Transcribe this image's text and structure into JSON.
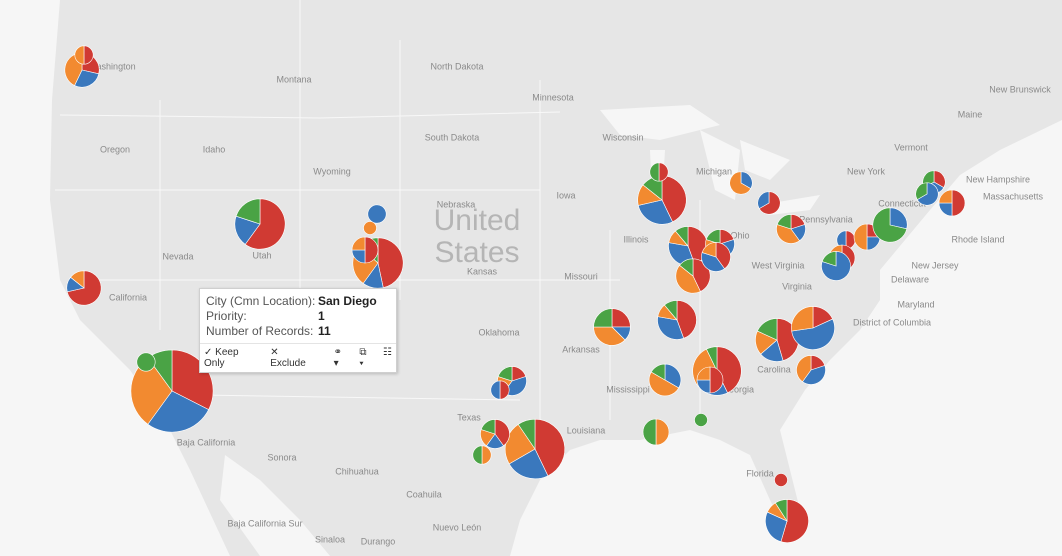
{
  "map": {
    "colors": [
      "#d03a33",
      "#3a78bd",
      "#f28a30",
      "#4aa345"
    ],
    "labels": [
      "Washington",
      "North Dakota",
      "Montana",
      "Minnesota",
      "Oregon",
      "Idaho",
      "South Dakota",
      "Wisconsin",
      "Michigan",
      "Wyoming",
      "Vermont",
      "Maine",
      "New Brunswick",
      "New Hampshire",
      "Massachusetts",
      "New York",
      "Connecticut",
      "Nevada",
      "Utah",
      "Nebraska",
      "Iowa",
      "Illinois",
      "Ohio",
      "Pennsylvania",
      "Rhode Island",
      "New Jersey",
      "California",
      "Kansas",
      "Missouri",
      "West Virginia",
      "Virginia",
      "Delaware",
      "Maryland",
      "District of Columbia",
      "Oklahoma",
      "Arkansas",
      "Carolina",
      "Mississippi",
      "Georgia",
      "Texas",
      "Louisiana",
      "Florida",
      "Baja California",
      "Sonora",
      "Chihuahua",
      "Coahuila",
      "Baja California Sur",
      "Sinaloa",
      "Durango",
      "Nuevo León"
    ],
    "country": "United States",
    "pies": [
      [
        13,
        11,
        12,
        4
      ],
      [
        2,
        2,
        3,
        0
      ],
      [
        1,
        0,
        1,
        0
      ],
      [
        9,
        3,
        0,
        3
      ],
      [
        7,
        2,
        4,
        2
      ],
      [
        0,
        2,
        0,
        0
      ],
      [
        0,
        0,
        1,
        0
      ],
      [
        2,
        1,
        1,
        0
      ],
      [
        5,
        1,
        1,
        0
      ],
      [
        0,
        0,
        0,
        2
      ],
      [
        1,
        2,
        1,
        1
      ],
      [
        1,
        1,
        0,
        0
      ],
      [
        9,
        5,
        5,
        2
      ],
      [
        2,
        1,
        1,
        1
      ],
      [
        0,
        0,
        1,
        1
      ],
      [
        0,
        0,
        2,
        2
      ],
      [
        2,
        1,
        3,
        2
      ],
      [
        4,
        3,
        1,
        1
      ],
      [
        6,
        4,
        2,
        2
      ],
      [
        1,
        0,
        0,
        1
      ],
      [
        4,
        3,
        1,
        1
      ],
      [
        3,
        0,
        3,
        1
      ],
      [
        1,
        2,
        1,
        1
      ],
      [
        2,
        2,
        1,
        0
      ],
      [
        0,
        1,
        2,
        0
      ],
      [
        2,
        1,
        0,
        0
      ],
      [
        1,
        1,
        2,
        1
      ],
      [
        6,
        3,
        4,
        1
      ],
      [
        2,
        1,
        1,
        0
      ],
      [
        0,
        2,
        3,
        1
      ],
      [
        0,
        0,
        0,
        1
      ],
      [
        5,
        2,
        2,
        2
      ],
      [
        2,
        6,
        3,
        0
      ],
      [
        1,
        2,
        2,
        0
      ],
      [
        1,
        1,
        0,
        0
      ],
      [
        2,
        1,
        1,
        0
      ],
      [
        0,
        4,
        0,
        1
      ],
      [
        1,
        1,
        2,
        0
      ],
      [
        0,
        2,
        0,
        5
      ],
      [
        1,
        1,
        0,
        1
      ],
      [
        0,
        2,
        0,
        1
      ],
      [
        2,
        1,
        1,
        0
      ],
      [
        1,
        0,
        0,
        0
      ],
      [
        6,
        3,
        1,
        1
      ]
    ]
  },
  "tooltip": {
    "rows": [
      [
        "City (Cmn Location):",
        "San Diego"
      ],
      [
        "Priority:",
        1
      ],
      [
        "Number of Records:",
        11
      ]
    ],
    "keep": "Keep Only",
    "exclude": "Exclude"
  }
}
